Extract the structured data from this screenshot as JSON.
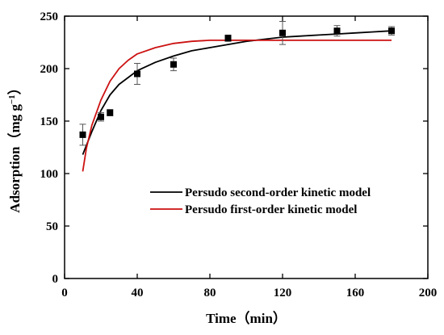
{
  "chart_data": {
    "type": "scatter",
    "xlabel": "Time（min）",
    "ylabel": "Adsorption（mg g",
    "ylabel_sup": "−1",
    "ylabel_close": "）",
    "xlim": [
      0,
      200
    ],
    "ylim": [
      0,
      250
    ],
    "x_ticks": [
      0,
      40,
      80,
      120,
      160,
      200
    ],
    "y_ticks": [
      0,
      50,
      100,
      150,
      200,
      250
    ],
    "x_tick_labels": [
      "0",
      "40",
      "80",
      "120",
      "160",
      "200"
    ],
    "y_tick_labels": [
      "0",
      "50",
      "100",
      "150",
      "200",
      "250"
    ],
    "grid": false,
    "legend_position": "center-right",
    "series": [
      {
        "kind": "points",
        "marker": "square",
        "color": "#000000",
        "x": [
          10,
          20,
          25,
          40,
          60,
          90,
          120,
          150,
          180
        ],
        "y": [
          137,
          154,
          158,
          195,
          204,
          229,
          234,
          236,
          236
        ],
        "err": [
          10,
          4,
          3,
          10,
          6,
          3,
          11,
          5,
          4
        ]
      },
      {
        "kind": "line",
        "name": "Persudo second-order kinetic model",
        "color": "#000000",
        "x": [
          10,
          15,
          20,
          25,
          30,
          40,
          50,
          60,
          70,
          80,
          90,
          100,
          110,
          120,
          130,
          140,
          150,
          160,
          170,
          180
        ],
        "y": [
          118,
          140,
          160,
          175,
          185,
          198,
          206,
          212,
          217,
          220,
          223,
          226,
          228,
          230,
          231,
          232,
          233,
          234,
          235,
          236
        ]
      },
      {
        "kind": "line",
        "name": "Persudo first-order kinetic model",
        "color": "#cc1111",
        "x": [
          10,
          12,
          15,
          20,
          25,
          30,
          35,
          40,
          50,
          60,
          70,
          80,
          90,
          100,
          110,
          120,
          140,
          160,
          180
        ],
        "y": [
          102,
          124,
          146,
          170,
          188,
          200,
          208,
          214,
          220,
          224,
          226,
          227,
          227,
          227,
          227,
          227,
          227,
          227,
          227
        ]
      }
    ]
  }
}
